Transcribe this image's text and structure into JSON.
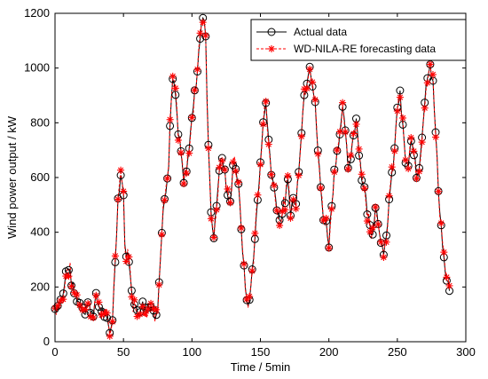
{
  "chart_data": {
    "type": "line",
    "xlabel": "Time / 5min",
    "ylabel": "Wind power output / kW",
    "xlim": [
      0,
      300
    ],
    "ylim": [
      0,
      1200
    ],
    "xticks": [
      "0",
      "50",
      "100",
      "150",
      "200",
      "250",
      "300"
    ],
    "yticks": [
      "0",
      "200",
      "400",
      "600",
      "800",
      "1000",
      "1200"
    ],
    "grid": false,
    "legend_position": "top-right",
    "keyframes": [
      [
        0,
        120
      ],
      [
        3,
        140
      ],
      [
        6,
        170
      ],
      [
        8,
        250
      ],
      [
        10,
        275
      ],
      [
        12,
        220
      ],
      [
        14,
        180
      ],
      [
        16,
        160
      ],
      [
        18,
        140
      ],
      [
        20,
        130
      ],
      [
        22,
        110
      ],
      [
        24,
        140
      ],
      [
        26,
        120
      ],
      [
        28,
        110
      ],
      [
        30,
        160
      ],
      [
        32,
        130
      ],
      [
        34,
        120
      ],
      [
        36,
        100
      ],
      [
        38,
        70
      ],
      [
        40,
        30
      ],
      [
        42,
        90
      ],
      [
        44,
        300
      ],
      [
        46,
        520
      ],
      [
        48,
        610
      ],
      [
        50,
        550
      ],
      [
        51,
        340
      ],
      [
        53,
        320
      ],
      [
        55,
        250
      ],
      [
        57,
        150
      ],
      [
        59,
        120
      ],
      [
        61,
        110
      ],
      [
        63,
        140
      ],
      [
        65,
        130
      ],
      [
        67,
        110
      ],
      [
        69,
        140
      ],
      [
        71,
        120
      ],
      [
        73,
        90
      ],
      [
        75,
        140
      ],
      [
        77,
        320
      ],
      [
        79,
        480
      ],
      [
        81,
        560
      ],
      [
        83,
        620
      ],
      [
        84,
        790
      ],
      [
        86,
        960
      ],
      [
        88,
        900
      ],
      [
        90,
        760
      ],
      [
        92,
        690
      ],
      [
        94,
        580
      ],
      [
        96,
        640
      ],
      [
        98,
        700
      ],
      [
        100,
        830
      ],
      [
        102,
        900
      ],
      [
        104,
        1000
      ],
      [
        105,
        1070
      ],
      [
        107,
        1160
      ],
      [
        109,
        1180
      ],
      [
        110,
        1100
      ],
      [
        112,
        720
      ],
      [
        114,
        480
      ],
      [
        116,
        380
      ],
      [
        118,
        500
      ],
      [
        120,
        640
      ],
      [
        122,
        670
      ],
      [
        124,
        620
      ],
      [
        126,
        520
      ],
      [
        128,
        500
      ],
      [
        130,
        660
      ],
      [
        132,
        640
      ],
      [
        134,
        560
      ],
      [
        136,
        420
      ],
      [
        138,
        260
      ],
      [
        140,
        150
      ],
      [
        142,
        140
      ],
      [
        144,
        260
      ],
      [
        146,
        380
      ],
      [
        148,
        520
      ],
      [
        150,
        640
      ],
      [
        152,
        820
      ],
      [
        154,
        860
      ],
      [
        156,
        740
      ],
      [
        158,
        620
      ],
      [
        160,
        560
      ],
      [
        162,
        500
      ],
      [
        164,
        440
      ],
      [
        166,
        470
      ],
      [
        168,
        520
      ],
      [
        170,
        580
      ],
      [
        172,
        480
      ],
      [
        174,
        520
      ],
      [
        176,
        500
      ],
      [
        178,
        640
      ],
      [
        180,
        780
      ],
      [
        182,
        900
      ],
      [
        184,
        960
      ],
      [
        186,
        1020
      ],
      [
        188,
        940
      ],
      [
        190,
        860
      ],
      [
        192,
        700
      ],
      [
        194,
        560
      ],
      [
        196,
        460
      ],
      [
        198,
        430
      ],
      [
        200,
        360
      ],
      [
        202,
        500
      ],
      [
        204,
        620
      ],
      [
        206,
        700
      ],
      [
        208,
        760
      ],
      [
        210,
        840
      ],
      [
        212,
        780
      ],
      [
        214,
        620
      ],
      [
        216,
        680
      ],
      [
        218,
        760
      ],
      [
        220,
        820
      ],
      [
        222,
        700
      ],
      [
        224,
        600
      ],
      [
        226,
        560
      ],
      [
        228,
        480
      ],
      [
        230,
        420
      ],
      [
        232,
        400
      ],
      [
        234,
        500
      ],
      [
        236,
        440
      ],
      [
        238,
        380
      ],
      [
        240,
        300
      ],
      [
        242,
        380
      ],
      [
        244,
        520
      ],
      [
        246,
        600
      ],
      [
        248,
        700
      ],
      [
        250,
        860
      ],
      [
        252,
        900
      ],
      [
        254,
        780
      ],
      [
        256,
        660
      ],
      [
        258,
        640
      ],
      [
        260,
        720
      ],
      [
        262,
        700
      ],
      [
        264,
        600
      ],
      [
        266,
        640
      ],
      [
        268,
        760
      ],
      [
        270,
        880
      ],
      [
        272,
        980
      ],
      [
        274,
        1020
      ],
      [
        276,
        940
      ],
      [
        278,
        760
      ],
      [
        280,
        560
      ],
      [
        282,
        420
      ],
      [
        284,
        300
      ],
      [
        286,
        220
      ],
      [
        288,
        190
      ]
    ],
    "series": [
      {
        "name": "Actual data",
        "color": "#000000",
        "marker": "circle"
      },
      {
        "name": "WD-NILA-RE forecasting data",
        "color": "#ff0000",
        "marker": "asterisk",
        "linestyle": "dashed"
      }
    ]
  }
}
